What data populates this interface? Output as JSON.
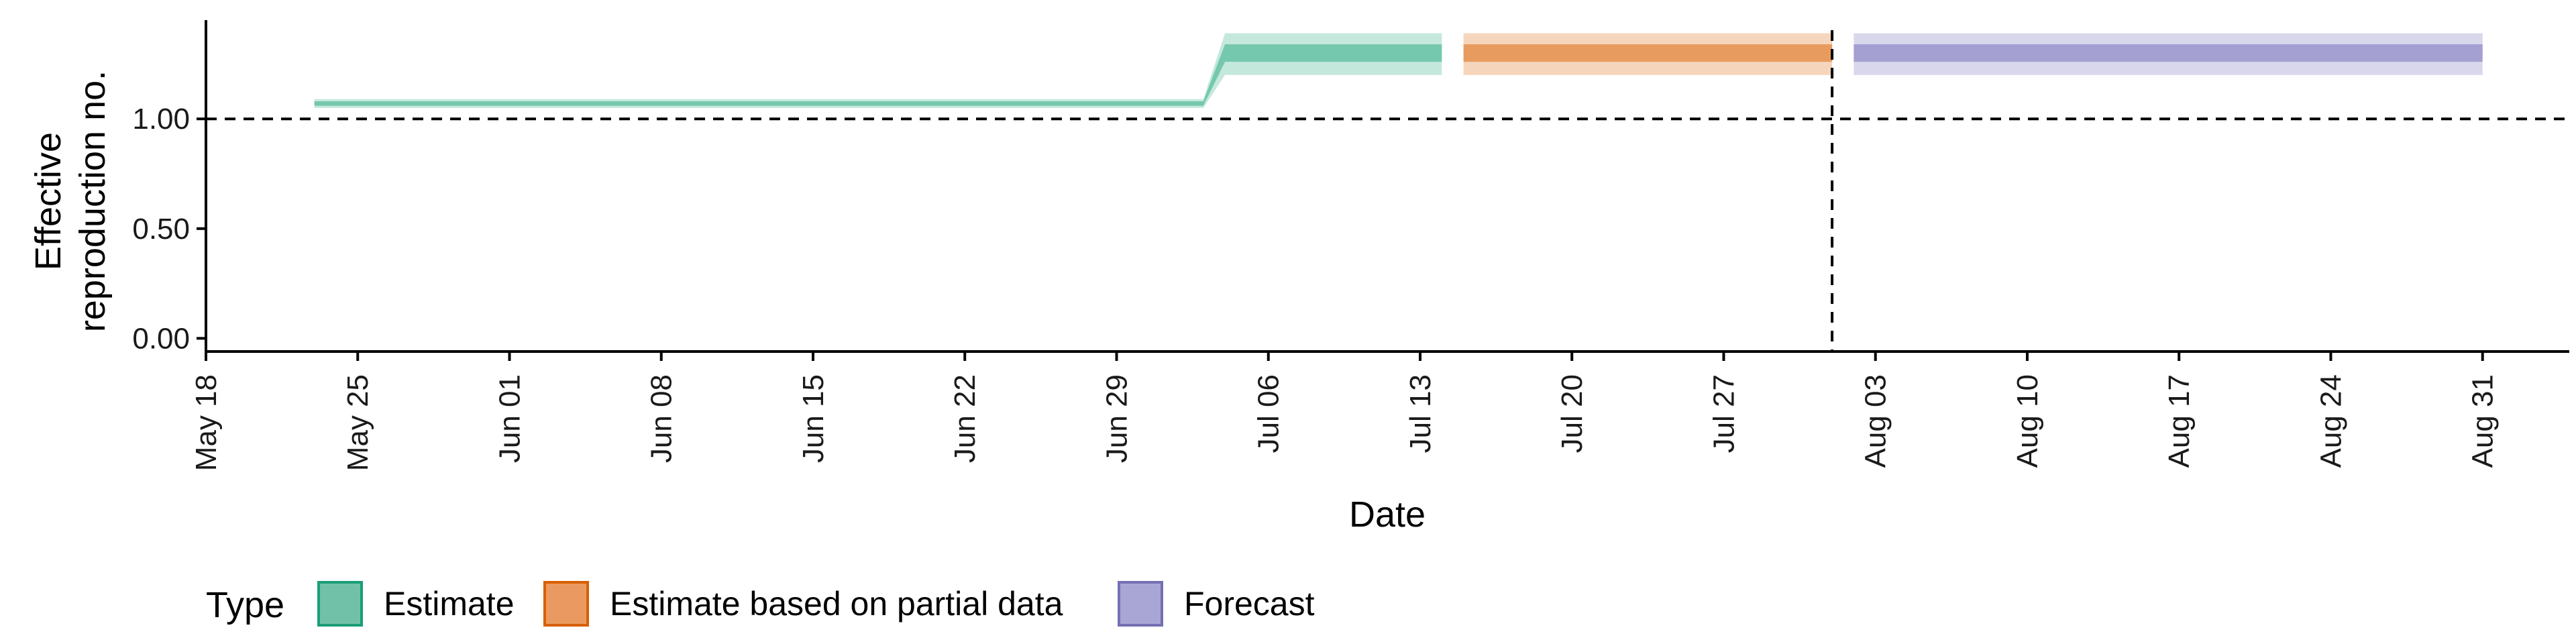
{
  "chart_data": {
    "type": "line",
    "xlabel": "Date",
    "ylabel_lines": [
      "Effective",
      "reproduction no."
    ],
    "xlim": [
      "2020-05-18",
      "2020-09-04"
    ],
    "ylim": [
      -0.06,
      1.45
    ],
    "x_ticks": [
      "2020-05-18",
      "2020-05-25",
      "2020-06-01",
      "2020-06-08",
      "2020-06-15",
      "2020-06-22",
      "2020-06-29",
      "2020-07-06",
      "2020-07-13",
      "2020-07-20",
      "2020-07-27",
      "2020-08-03",
      "2020-08-10",
      "2020-08-17",
      "2020-08-24",
      "2020-08-31"
    ],
    "x_tick_labels": [
      "May 18",
      "May 25",
      "Jun 01",
      "Jun 08",
      "Jun 15",
      "Jun 22",
      "Jun 29",
      "Jul 06",
      "Jul 13",
      "Jul 20",
      "Jul 27",
      "Aug 03",
      "Aug 10",
      "Aug 17",
      "Aug 24",
      "Aug 31"
    ],
    "y_ticks": [
      0.0,
      0.5,
      1.0
    ],
    "y_tick_labels": [
      "0.00",
      "0.50",
      "1.00"
    ],
    "reference_lines": {
      "horizontal": {
        "y": 1.0,
        "style": "dashed"
      },
      "vertical": {
        "x": "2020-08-01",
        "style": "dashed"
      }
    },
    "legend": {
      "title": "Type",
      "position": "bottom",
      "items": [
        "Estimate",
        "Estimate based on partial data",
        "Forecast"
      ]
    },
    "series": [
      {
        "name": "Estimate",
        "color": "#1b9e77",
        "fill": "#66c2a5",
        "points": [
          {
            "x": "2020-05-23",
            "median": 1.07,
            "inner": [
              1.06,
              1.08
            ],
            "outer": [
              1.05,
              1.09
            ]
          },
          {
            "x": "2020-07-03",
            "median": 1.07,
            "inner": [
              1.06,
              1.08
            ],
            "outer": [
              1.05,
              1.09
            ]
          },
          {
            "x": "2020-07-04",
            "median": 1.3,
            "inner": [
              1.26,
              1.34
            ],
            "outer": [
              1.2,
              1.39
            ]
          },
          {
            "x": "2020-07-14",
            "median": 1.3,
            "inner": [
              1.26,
              1.34
            ],
            "outer": [
              1.2,
              1.39
            ]
          }
        ]
      },
      {
        "name": "Estimate based on partial data",
        "color": "#d95f02",
        "fill": "#e5904f",
        "points": [
          {
            "x": "2020-07-15",
            "median": 1.3,
            "inner": [
              1.26,
              1.34
            ],
            "outer": [
              1.2,
              1.39
            ]
          },
          {
            "x": "2020-08-01",
            "median": 1.3,
            "inner": [
              1.26,
              1.34
            ],
            "outer": [
              1.2,
              1.39
            ]
          }
        ]
      },
      {
        "name": "Forecast",
        "color": "#7570b3",
        "fill": "#9a96cc",
        "points": [
          {
            "x": "2020-08-02",
            "median": 1.3,
            "inner": [
              1.26,
              1.34
            ],
            "outer": [
              1.2,
              1.39
            ]
          },
          {
            "x": "2020-08-31",
            "median": 1.3,
            "inner": [
              1.26,
              1.34
            ],
            "outer": [
              1.2,
              1.39
            ]
          }
        ]
      }
    ]
  }
}
